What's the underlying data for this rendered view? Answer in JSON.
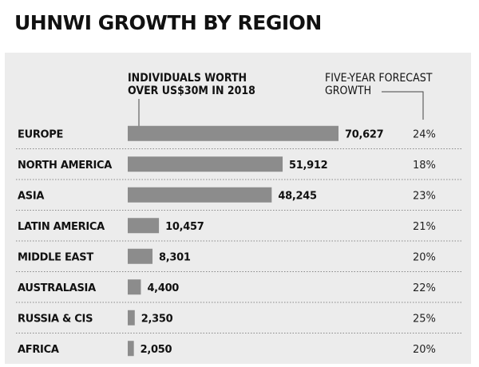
{
  "chart_data": {
    "type": "bar",
    "title": "UHNWI GROWTH BY REGION",
    "series_header": [
      "INDIVIDUALS WORTH",
      "OVER US$30M IN 2018"
    ],
    "growth_header": [
      "FIVE-YEAR FORECAST",
      "GROWTH"
    ],
    "categories": [
      "EUROPE",
      "NORTH AMERICA",
      "ASIA",
      "LATIN AMERICA",
      "MIDDLE EAST",
      "AUSTRALASIA",
      "RUSSIA & CIS",
      "AFRICA"
    ],
    "value_labels": [
      "70,627",
      "51,912",
      "48,245",
      "10,457",
      "8,301",
      "4,400",
      "2,350",
      "2,050"
    ],
    "values": [
      70627,
      51912,
      48245,
      10457,
      8301,
      4400,
      2350,
      2050
    ],
    "growth": [
      "24%",
      "18%",
      "23%",
      "21%",
      "20%",
      "22%",
      "25%",
      "20%"
    ],
    "orientation": "horizontal",
    "xlim": [
      0,
      70627
    ],
    "grid": false,
    "colors": {
      "bar": "#8c8c8c",
      "panel": "#ececec",
      "divider": "#888888",
      "text": "#111111"
    }
  }
}
